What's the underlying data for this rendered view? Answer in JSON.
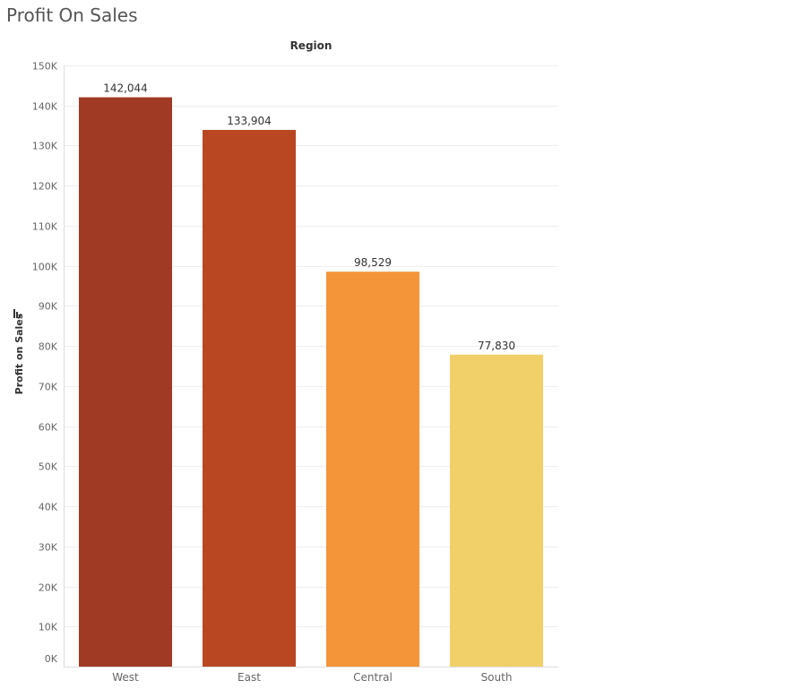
{
  "sheet": {
    "title": "Profit On Sales"
  },
  "chart_data": {
    "type": "bar",
    "title": "Profit On Sales",
    "column_header": "Region",
    "xlabel": "",
    "ylabel": "Profit on Sales",
    "sort_icon": "sort-descending-icon",
    "categories": [
      "West",
      "East",
      "Central",
      "South"
    ],
    "values": [
      142044,
      133904,
      98529,
      77830
    ],
    "data_labels": [
      "142,044",
      "133,904",
      "98,529",
      "77,830"
    ],
    "colors": [
      "#a03a24",
      "#b84722",
      "#f4953a",
      "#f1d06a"
    ],
    "ylim": [
      0,
      150000
    ],
    "yticks": [
      0,
      10000,
      20000,
      30000,
      40000,
      50000,
      60000,
      70000,
      80000,
      90000,
      100000,
      110000,
      120000,
      130000,
      140000,
      150000
    ],
    "ytick_labels": [
      "0K",
      "10K",
      "20K",
      "30K",
      "40K",
      "50K",
      "60K",
      "70K",
      "80K",
      "90K",
      "100K",
      "110K",
      "120K",
      "130K",
      "140K",
      "150K"
    ],
    "grid": true,
    "legend": "none"
  }
}
